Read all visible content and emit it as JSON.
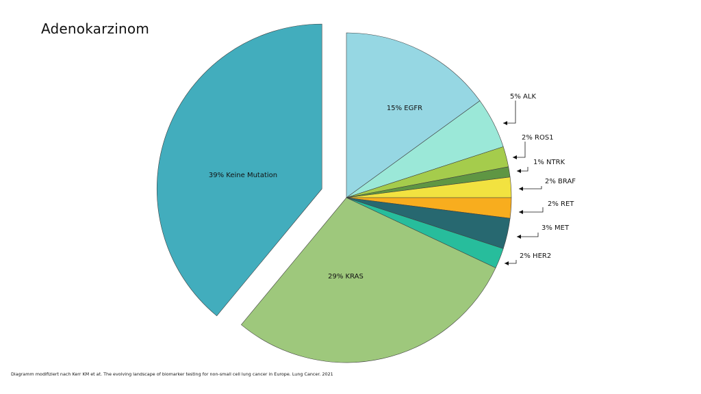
{
  "title": "Adenokarzinom",
  "caption": "Diagramm modifiziert nach Kerr KM et at. The evolving landscape of biomarker testing for non-small cell lung cancer in Europe. Lung Cancer. 2021",
  "chart_data": {
    "type": "pie",
    "title": "Adenokarzinom",
    "slices": [
      {
        "name": "EGFR",
        "value": 15,
        "label": "15% EGFR",
        "color": "#96d7e3",
        "label_position": "inside"
      },
      {
        "name": "ALK",
        "value": 5,
        "label": "5% ALK",
        "color": "#9be8d8",
        "label_position": "outside"
      },
      {
        "name": "ROS1",
        "value": 2,
        "label": "2% ROS1",
        "color": "#a5cc4c",
        "label_position": "outside"
      },
      {
        "name": "NTRK",
        "value": 1,
        "label": "1% NTRK",
        "color": "#5f9643",
        "label_position": "outside"
      },
      {
        "name": "BRAF",
        "value": 2,
        "label": "2% BRAF",
        "color": "#f2e240",
        "label_position": "outside"
      },
      {
        "name": "RET",
        "value": 2,
        "label": "2% RET",
        "color": "#f8ad1e",
        "label_position": "outside"
      },
      {
        "name": "MET",
        "value": 3,
        "label": "3% MET",
        "color": "#276870",
        "label_position": "outside"
      },
      {
        "name": "HER2",
        "value": 2,
        "label": "2% HER2",
        "color": "#27bd9c",
        "label_position": "outside"
      },
      {
        "name": "KRAS",
        "value": 29,
        "label": "29% KRAS",
        "color": "#9ec87c",
        "label_position": "inside"
      },
      {
        "name": "Keine Mutation",
        "value": 39,
        "label": "39% Keine Mutation",
        "color": "#42adbd",
        "label_position": "inside",
        "exploded": true
      }
    ],
    "legend": "none"
  }
}
